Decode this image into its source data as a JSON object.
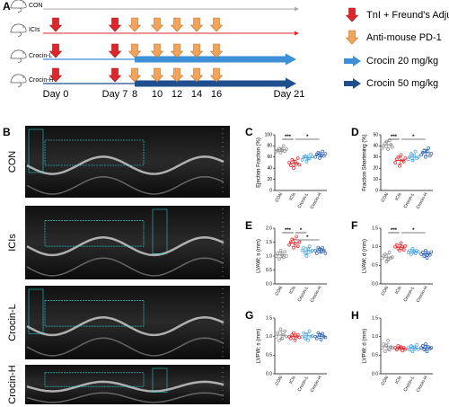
{
  "panel_a": {
    "label": "A",
    "groups": [
      "CON",
      "ICIs",
      "Crocin-L",
      "Crocin-H"
    ],
    "days": [
      "Day 0",
      "Day 7",
      "8",
      "10",
      "12",
      "14",
      "16",
      "Day 21"
    ],
    "legend": [
      "TnI + Freund's Adjuvant",
      "Anti-mouse PD-1",
      "Crocin 20 mg/kg",
      "Crocin 50 mg/kg"
    ]
  },
  "panel_b": {
    "label": "B",
    "rows": [
      "CON",
      "ICIs",
      "Crocin-L",
      "Crocin-H"
    ]
  },
  "chart_data": [
    {
      "type": "dotplot",
      "panel": "C",
      "ylabel": "Ejection Fraction (%)",
      "categories": [
        "CON",
        "ICIs",
        "Crocin-L",
        "Crocin-H"
      ],
      "colors": [
        "#8c8c8c",
        "#e0262b",
        "#4aa3df",
        "#2a5db0"
      ],
      "points": [
        [
          70,
          72,
          75,
          68,
          73,
          80,
          71,
          74
        ],
        [
          50,
          45,
          55,
          40,
          52,
          48,
          58,
          46
        ],
        [
          55,
          60,
          62,
          52,
          58,
          57,
          65,
          61
        ],
        [
          60,
          65,
          68,
          58,
          63,
          70,
          62,
          66
        ]
      ],
      "means": [
        73,
        49,
        59,
        64
      ],
      "sds": [
        3.5,
        5.5,
        4,
        4
      ],
      "ylim": [
        0,
        100
      ],
      "yticks": [
        0,
        20,
        40,
        60,
        80,
        100
      ],
      "significance": [
        {
          "label": "***",
          "pair": [
            0,
            1
          ]
        },
        {
          "label": "*",
          "pair": [
            1,
            3
          ]
        }
      ]
    },
    {
      "type": "dotplot",
      "panel": "D",
      "ylabel": "Fraction Shortening (%)",
      "categories": [
        "CON",
        "ICIs",
        "Crocin-L",
        "Crocin-H"
      ],
      "colors": [
        "#8c8c8c",
        "#e0262b",
        "#4aa3df",
        "#2a5db0"
      ],
      "points": [
        [
          38,
          40,
          42,
          44,
          37,
          45,
          41,
          39
        ],
        [
          25,
          28,
          30,
          22,
          32,
          27,
          26,
          29
        ],
        [
          28,
          30,
          33,
          27,
          31,
          35,
          29,
          30
        ],
        [
          32,
          34,
          36,
          30,
          35,
          38,
          31,
          33
        ]
      ],
      "means": [
        41,
        27,
        30,
        34
      ],
      "sds": [
        2.8,
        3,
        2.5,
        2.6
      ],
      "ylim": [
        0,
        50
      ],
      "yticks": [
        0,
        10,
        20,
        30,
        40,
        50
      ],
      "significance": [
        {
          "label": "***",
          "pair": [
            0,
            1
          ]
        },
        {
          "label": "*",
          "pair": [
            1,
            3
          ]
        }
      ]
    },
    {
      "type": "dotplot",
      "panel": "E",
      "ylabel": "LVAW; s (mm)",
      "categories": [
        "CON",
        "ICIs",
        "Crocin-L",
        "Crocin-H"
      ],
      "colors": [
        "#8c8c8c",
        "#e0262b",
        "#4aa3df",
        "#2a5db0"
      ],
      "points": [
        [
          1.0,
          1.1,
          0.9,
          1.2,
          1.05,
          0.95,
          1.15,
          1.0
        ],
        [
          1.4,
          1.5,
          1.6,
          1.3,
          1.45,
          1.7,
          1.35,
          1.5
        ],
        [
          1.2,
          1.3,
          1.1,
          1.0,
          1.25,
          1.35,
          1.15,
          1.2
        ],
        [
          1.2,
          1.1,
          1.3,
          1.25,
          1.15,
          1.3,
          1.2,
          1.1
        ]
      ],
      "means": [
        1.04,
        1.48,
        1.19,
        1.2
      ],
      "sds": [
        0.1,
        0.13,
        0.11,
        0.08
      ],
      "ylim": [
        0,
        2
      ],
      "yticks": [
        {
          "value": 0,
          "label": "0.0"
        },
        {
          "value": 0.5,
          "label": "0.5"
        },
        {
          "value": 1,
          "label": "1.0"
        },
        {
          "value": 1.5,
          "label": "1.5"
        },
        {
          "value": 2,
          "label": "2.0"
        }
      ],
      "significance": [
        {
          "label": "***",
          "pair": [
            0,
            1
          ]
        },
        {
          "label": "*",
          "pair": [
            1,
            2
          ]
        },
        {
          "label": "*",
          "pair": [
            1,
            3
          ]
        }
      ]
    },
    {
      "type": "dotplot",
      "panel": "F",
      "ylabel": "LVAW; d (mm)",
      "categories": [
        "CON",
        "ICIs",
        "Crocin-L",
        "Crocin-H"
      ],
      "colors": [
        "#8c8c8c",
        "#e0262b",
        "#4aa3df",
        "#2a5db0"
      ],
      "points": [
        [
          0.7,
          0.75,
          0.8,
          0.6,
          0.65,
          0.85,
          0.7,
          0.72
        ],
        [
          1.0,
          1.05,
          0.95,
          0.9,
          1.1,
          1.0,
          0.92,
          1.02
        ],
        [
          0.85,
          0.9,
          0.8,
          0.95,
          0.88,
          0.82,
          0.9,
          0.86
        ],
        [
          0.8,
          0.85,
          0.75,
          0.9,
          0.7,
          0.82,
          0.78,
          0.86
        ]
      ],
      "means": [
        0.72,
        0.99,
        0.87,
        0.81
      ],
      "sds": [
        0.08,
        0.06,
        0.05,
        0.06
      ],
      "ylim": [
        0,
        1.5
      ],
      "yticks": [
        {
          "value": 0,
          "label": "0.0"
        },
        {
          "value": 0.5,
          "label": "0.5"
        },
        {
          "value": 1,
          "label": "1.0"
        },
        {
          "value": 1.5,
          "label": "1.5"
        }
      ],
      "significance": [
        {
          "label": "***",
          "pair": [
            0,
            1
          ]
        },
        {
          "label": "*",
          "pair": [
            1,
            3
          ]
        }
      ]
    },
    {
      "type": "dotplot",
      "panel": "G",
      "ylabel": "LVPW; s (mm)",
      "categories": [
        "CON",
        "ICIs",
        "Crocin-L",
        "Crocin-H"
      ],
      "colors": [
        "#8c8c8c",
        "#e0262b",
        "#4aa3df",
        "#2a5db0"
      ],
      "points": [
        [
          1.0,
          1.1,
          0.9,
          1.2,
          0.95,
          1.05,
          1.15,
          1.0
        ],
        [
          1.0,
          0.95,
          1.05,
          1.1,
          0.9,
          1.0,
          1.05,
          0.98
        ],
        [
          1.0,
          1.1,
          0.95,
          1.05,
          0.9,
          1.15,
          1.0,
          1.02
        ],
        [
          1.0,
          0.95,
          1.1,
          1.05,
          0.92,
          1.08,
          1.0,
          0.98
        ]
      ],
      "means": [
        1.04,
        1.0,
        1.02,
        1.01
      ],
      "sds": [
        0.1,
        0.06,
        0.08,
        0.06
      ],
      "ylim": [
        0,
        1.5
      ],
      "yticks": [
        {
          "value": 0,
          "label": "0.0"
        },
        {
          "value": 0.5,
          "label": "0.5"
        },
        {
          "value": 1,
          "label": "1.0"
        },
        {
          "value": 1.5,
          "label": "1.5"
        }
      ],
      "significance": []
    },
    {
      "type": "dotplot",
      "panel": "H",
      "ylabel": "LVPW; d (mm)",
      "categories": [
        "CON",
        "ICIs",
        "Crocin-L",
        "Crocin-H"
      ],
      "colors": [
        "#8c8c8c",
        "#e0262b",
        "#4aa3df",
        "#2a5db0"
      ],
      "points": [
        [
          0.7,
          0.8,
          0.6,
          0.75,
          0.9,
          0.65,
          0.72,
          0.7
        ],
        [
          0.7,
          0.65,
          0.75,
          0.68,
          0.72,
          0.62,
          0.7,
          0.66
        ],
        [
          0.7,
          0.65,
          0.75,
          0.6,
          0.72,
          0.68,
          0.78,
          0.66
        ],
        [
          0.7,
          0.75,
          0.65,
          0.8,
          0.6,
          0.72,
          0.68,
          0.7
        ]
      ],
      "means": [
        0.73,
        0.69,
        0.69,
        0.7
      ],
      "sds": [
        0.09,
        0.04,
        0.06,
        0.06
      ],
      "ylim": [
        0,
        1.5
      ],
      "yticks": [
        {
          "value": 0,
          "label": "0.0"
        },
        {
          "value": 0.5,
          "label": "0.5"
        },
        {
          "value": 1,
          "label": "1.0"
        },
        {
          "value": 1.5,
          "label": "1.5"
        }
      ],
      "significance": []
    }
  ]
}
